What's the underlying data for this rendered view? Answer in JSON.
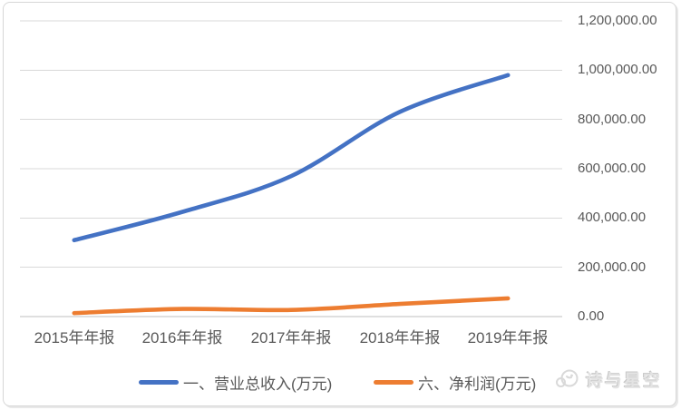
{
  "chart": {
    "background": "#ffffff",
    "border_color": "#d7d7d7",
    "gridline_color": "#d9d9d9",
    "axis_line_color": "#bfbfbf",
    "text_color": "#595959"
  },
  "chart_data": {
    "type": "line",
    "title": "",
    "categories": [
      "2015年年报",
      "2016年年报",
      "2017年年报",
      "2018年年报",
      "2019年年报"
    ],
    "series": [
      {
        "name": "一、营业总收入(万元)",
        "color": "#4472C4",
        "values": [
          310000,
          425000,
          570000,
          830000,
          980000
        ]
      },
      {
        "name": "六、净利润(万元)",
        "color": "#ED7D31",
        "values": [
          14000,
          31000,
          27000,
          51000,
          74000
        ]
      }
    ],
    "ylim": [
      0,
      1200000
    ],
    "y_ticks": [
      0,
      200000,
      400000,
      600000,
      800000,
      1000000,
      1200000
    ],
    "y_tick_labels": [
      "0.00",
      "200,000.00",
      "400,000.00",
      "600,000.00",
      "800,000.00",
      "1,000,000.00",
      "1,200,000.00"
    ],
    "value_axis_side": "right",
    "grid": "horizontal",
    "smooth_lines": true,
    "legend_position": "bottom"
  },
  "watermark": {
    "text": "诗与星空",
    "logo": "bird-face-logo"
  }
}
